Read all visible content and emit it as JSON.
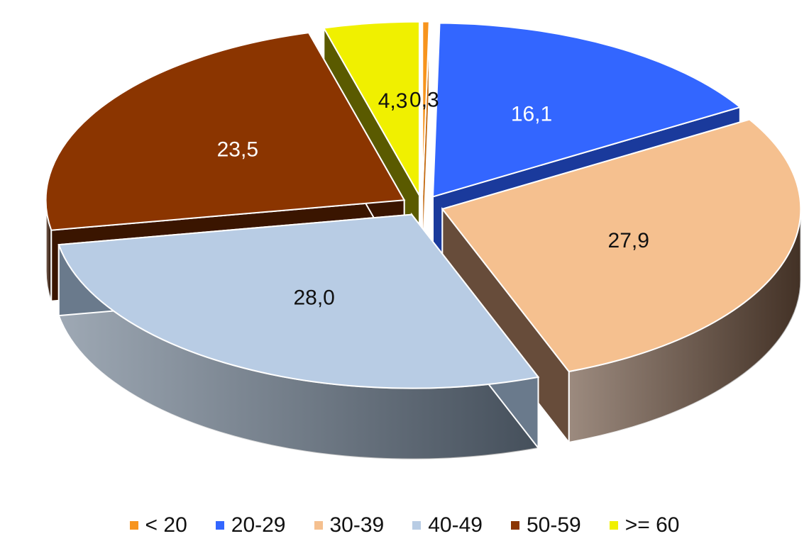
{
  "chart_data": {
    "type": "pie",
    "title": "",
    "categories": [
      "< 20",
      "20-29",
      "30-39",
      "40-49",
      "50-59",
      ">= 60"
    ],
    "values": [
      0.3,
      16.1,
      27.9,
      28.0,
      23.5,
      4.3
    ],
    "labels": [
      "0,3",
      "16,1",
      "27,9",
      "28,0",
      "23,5",
      "4,3"
    ],
    "colors": [
      "#f7941d",
      "#3366ff",
      "#f5c08f",
      "#b8cce4",
      "#8b3500",
      "#f0f000"
    ],
    "side_colors": [
      "#c46a10",
      "#1a3a9c",
      "#674c3a",
      "#6a7a8c",
      "#3a1500",
      "#5a5a00"
    ],
    "label_colors": [
      "#111111",
      "#ffffff",
      "#111111",
      "#111111",
      "#ffffff",
      "#111111"
    ],
    "style": "3d-exploded",
    "legend_position": "bottom"
  }
}
